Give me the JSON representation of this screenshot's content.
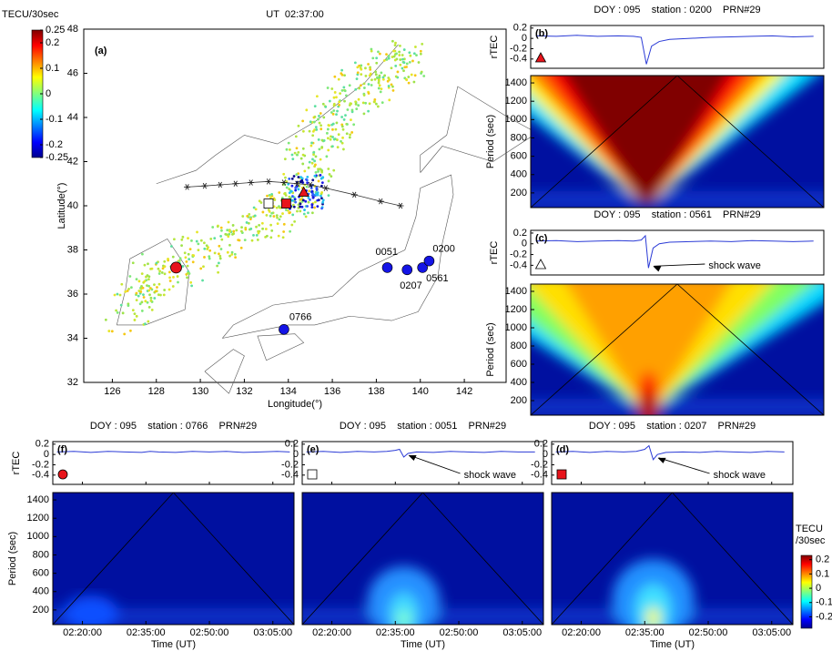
{
  "chart_data": [
    {
      "type": "map",
      "title": "UT  02:37:00",
      "panel_label": "(a)",
      "x_label": "Longitude(°)",
      "y_label": "Latitude(°)",
      "xlim": [
        124.7,
        143.9
      ],
      "ylim": [
        32,
        48
      ],
      "xticks": [
        126,
        128,
        130,
        132,
        134,
        136,
        138,
        140,
        142
      ],
      "yticks": [
        32,
        34,
        36,
        38,
        40,
        42,
        44,
        46,
        48
      ],
      "colorbar": {
        "title": "TECU/30sec",
        "lim": [
          -0.25,
          0.25
        ],
        "ticks": [
          0.25,
          0.2,
          0.1,
          0,
          -0.1,
          -0.2,
          -0.25
        ]
      },
      "stations": {
        "color": "#1414e6",
        "names": [
          "0051",
          "0207",
          "0561",
          "0200",
          "0766"
        ],
        "lon": [
          138.5,
          139.4,
          140.1,
          140.4,
          133.8
        ],
        "lat": [
          37.2,
          37.1,
          37.2,
          37.5,
          34.4
        ]
      },
      "markers": [
        {
          "shape": "circle",
          "color": "#e8141b",
          "lon": 128.9,
          "lat": 37.2
        },
        {
          "shape": "square",
          "color": "#ffffff",
          "lon": 133.1,
          "lat": 40.1
        },
        {
          "shape": "square",
          "color": "#e8141b",
          "lon": 133.9,
          "lat": 40.1
        },
        {
          "shape": "triangle",
          "color": "#e8141b",
          "lon": 134.7,
          "lat": 40.6
        }
      ],
      "track": {
        "x": [
          129.4,
          130.2,
          130.9,
          131.6,
          132.3,
          133.1,
          133.8,
          134.4,
          135.0,
          135.7,
          137.0,
          138.2,
          139.1
        ],
        "y": [
          40.85,
          40.9,
          40.95,
          41.0,
          41.05,
          41.1,
          41.05,
          41.0,
          40.95,
          40.8,
          40.5,
          40.2,
          40.0
        ]
      }
    },
    {
      "type": "tec",
      "title": "DOY : 095    station : 0200    PRN#29",
      "panel_label": "(b)",
      "y_label": "rTEC",
      "marker": {
        "shape": "triangle",
        "color": "#e8141b"
      },
      "line_color": "#2b3bd6",
      "x": [
        14,
        18,
        22,
        26,
        30,
        33,
        34.5,
        35.5,
        36.5,
        38,
        40,
        44,
        48,
        52,
        56,
        60,
        64,
        68
      ],
      "values": [
        0.05,
        0.04,
        0.06,
        0.04,
        0.05,
        0.04,
        0.02,
        -0.5,
        -0.15,
        -0.06,
        -0.02,
        0.0,
        0.02,
        0.03,
        0.04,
        0.05,
        0.03,
        0.04
      ],
      "xlim": [
        13,
        70
      ],
      "ylim": [
        -0.58,
        0.25
      ],
      "yticks": [
        0.2,
        0,
        -0.2,
        -0.4
      ],
      "spectrogram": {
        "y_label": "Period (sec)",
        "ylim": [
          40,
          1480
        ],
        "yticks": [
          200,
          400,
          600,
          800,
          1000,
          1200,
          1400
        ]
      }
    },
    {
      "type": "tec",
      "title": "DOY : 095    station : 0561    PRN#29",
      "panel_label": "(c)",
      "y_label": "rTEC",
      "marker": {
        "shape": "triangle",
        "color": "#ffffff"
      },
      "line_color": "#2b3bd6",
      "annotation": "shock wave",
      "x": [
        14,
        18,
        22,
        26,
        30,
        33,
        34.5,
        35.3,
        35.9,
        36.8,
        38,
        40,
        44,
        48,
        52,
        56,
        60,
        64,
        68
      ],
      "values": [
        0.05,
        0.06,
        0.04,
        0.05,
        0.06,
        0.05,
        0.07,
        0.15,
        -0.45,
        -0.08,
        0.0,
        0.03,
        0.04,
        0.05,
        0.04,
        0.06,
        0.05,
        0.04,
        0.05
      ],
      "xlim": [
        13,
        70
      ],
      "ylim": [
        -0.58,
        0.25
      ],
      "yticks": [
        0.2,
        0,
        -0.2,
        -0.4
      ],
      "spectrogram": {
        "y_label": "Period (sec)",
        "ylim": [
          40,
          1480
        ],
        "yticks": [
          200,
          400,
          600,
          800,
          1000,
          1200,
          1400
        ]
      }
    },
    {
      "type": "tec",
      "title": "DOY : 095    station : 0766    PRN#29",
      "panel_label": "(f)",
      "y_label": "rTEC",
      "marker": {
        "shape": "circle",
        "color": "#e8141b"
      },
      "line_color": "#2b3bd6",
      "x": [
        14,
        18,
        22,
        26,
        30,
        34,
        36,
        38,
        42,
        46,
        50,
        54,
        58,
        62,
        66,
        69
      ],
      "values": [
        0.05,
        0.06,
        0.04,
        0.06,
        0.05,
        0.04,
        0.06,
        0.05,
        0.04,
        0.06,
        0.05,
        0.06,
        0.04,
        0.05,
        0.06,
        0.05
      ],
      "xlim": [
        13,
        70
      ],
      "ylim": [
        -0.58,
        0.25
      ],
      "yticks": [
        0.2,
        0,
        -0.2,
        -0.4
      ],
      "x_label": "Time (UT)",
      "xticks": [
        {
          "value": 20,
          "label": "02:20:00"
        },
        {
          "value": 35,
          "label": "02:35:00"
        },
        {
          "value": 50,
          "label": "02:50:00"
        },
        {
          "value": 65,
          "label": "03:05:00"
        }
      ],
      "spectrogram": {
        "y_label": "Period (sec)",
        "ylim": [
          40,
          1480
        ],
        "yticks": [
          200,
          400,
          600,
          800,
          1000,
          1200,
          1400
        ]
      }
    },
    {
      "type": "tec",
      "title": "DOY : 095    station : 0051    PRN#29",
      "panel_label": "(e)",
      "marker": {
        "shape": "square",
        "color": "#ffffff"
      },
      "line_color": "#2b3bd6",
      "annotation": "shock wave",
      "x": [
        14,
        18,
        22,
        26,
        30,
        33,
        35,
        36,
        37,
        38,
        40,
        44,
        48,
        52,
        56,
        60,
        64,
        68
      ],
      "values": [
        0.05,
        0.06,
        0.04,
        0.06,
        0.05,
        0.06,
        0.08,
        0.1,
        -0.05,
        0.02,
        0.05,
        0.04,
        0.06,
        0.05,
        0.04,
        0.06,
        0.05,
        0.05
      ],
      "xlim": [
        13,
        70
      ],
      "ylim": [
        -0.58,
        0.25
      ],
      "yticks": [
        0.2,
        0,
        -0.2,
        -0.4
      ],
      "x_label": "Time (UT)",
      "xticks": [
        {
          "value": 20,
          "label": "02:20:00"
        },
        {
          "value": 35,
          "label": "02:35:00"
        },
        {
          "value": 50,
          "label": "02:50:00"
        },
        {
          "value": 65,
          "label": "03:05:00"
        }
      ],
      "spectrogram": {
        "ylim": [
          40,
          1480
        ]
      }
    },
    {
      "type": "tec",
      "title": "DOY : 095    station : 0207    PRN#29",
      "panel_label": "(d)",
      "marker": {
        "shape": "square",
        "color": "#e8141b"
      },
      "line_color": "#2b3bd6",
      "annotation": "shock wave",
      "x": [
        14,
        18,
        22,
        26,
        30,
        33,
        35,
        36,
        37,
        38,
        40,
        44,
        48,
        52,
        56,
        60,
        64,
        68
      ],
      "values": [
        0.05,
        0.06,
        0.04,
        0.06,
        0.05,
        0.06,
        0.1,
        0.17,
        -0.1,
        0.0,
        0.04,
        0.05,
        0.04,
        0.06,
        0.05,
        0.04,
        0.06,
        0.05
      ],
      "xlim": [
        13,
        70
      ],
      "ylim": [
        -0.58,
        0.25
      ],
      "yticks": [
        0.2,
        0,
        -0.2,
        -0.4
      ],
      "x_label": "Time (UT)",
      "xticks": [
        {
          "value": 20,
          "label": "02:20:00"
        },
        {
          "value": 35,
          "label": "02:35:00"
        },
        {
          "value": 50,
          "label": "02:50:00"
        },
        {
          "value": 65,
          "label": "03:05:00"
        }
      ],
      "spectrogram": {
        "ylim": [
          40,
          1480
        ]
      },
      "colorbar": {
        "title": [
          "TECU",
          "/30sec"
        ],
        "lim": [
          -0.28,
          0.23
        ],
        "ticks": [
          0.2,
          0.1,
          0,
          -0.1,
          -0.2
        ]
      }
    }
  ]
}
